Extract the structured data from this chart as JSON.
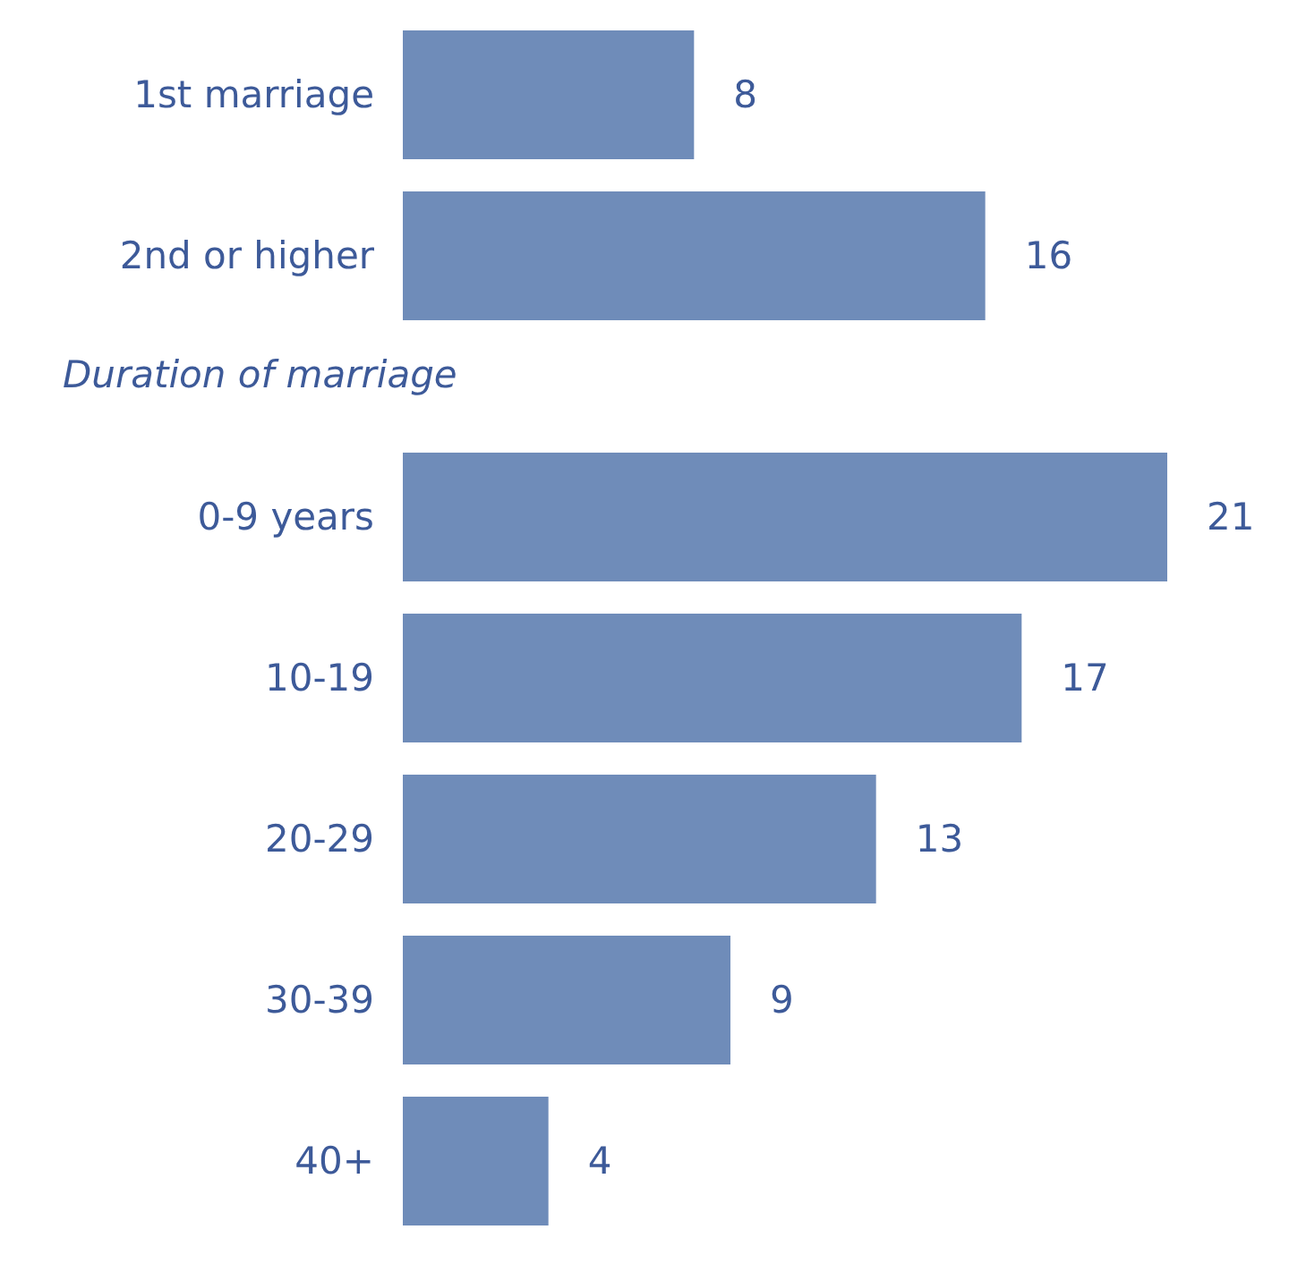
{
  "chart_data": [
    {
      "type": "bar",
      "orientation": "horizontal",
      "categories": [
        "1st marriage",
        "2nd or higher"
      ],
      "values": [
        8,
        16
      ],
      "color": "#6f8cb9",
      "data_labels": true
    },
    {
      "type": "bar",
      "orientation": "horizontal",
      "title": "Duration of marriage",
      "categories": [
        "0-9 years",
        "10-19",
        "20-29",
        "30-39",
        "40+"
      ],
      "values": [
        21,
        17,
        13,
        9,
        4
      ],
      "color": "#6f8cb9",
      "data_labels": true
    }
  ]
}
